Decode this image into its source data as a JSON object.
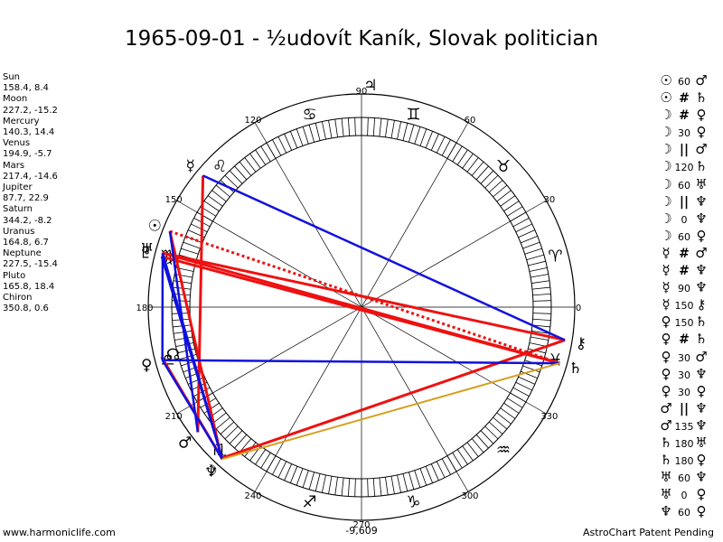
{
  "title": "1965-09-01 - ½udovít Kaník, Slovak politician",
  "footer": {
    "site": "www.harmoniclife.com",
    "patent": "AstroChart Patent Pending"
  },
  "planets": [
    {
      "name": "Sun",
      "lon": 158.4,
      "lat": 8.4,
      "coords": "158.4, 8.4",
      "glyph": "☉"
    },
    {
      "name": "Moon",
      "lon": 227.2,
      "lat": -15.2,
      "coords": "227.2, -15.2",
      "glyph": "☽"
    },
    {
      "name": "Mercury",
      "lon": 140.3,
      "lat": 14.4,
      "coords": "140.3, 14.4",
      "glyph": "☿"
    },
    {
      "name": "Venus",
      "lon": 194.9,
      "lat": -5.7,
      "coords": "194.9, -5.7",
      "glyph": "♀"
    },
    {
      "name": "Mars",
      "lon": 217.4,
      "lat": -14.6,
      "coords": "217.4, -14.6",
      "glyph": "♂"
    },
    {
      "name": "Jupiter",
      "lon": 87.7,
      "lat": 22.9,
      "coords": "87.7, 22.9",
      "glyph": "♃"
    },
    {
      "name": "Saturn",
      "lon": 344.2,
      "lat": -8.2,
      "coords": "344.2, -8.2",
      "glyph": "♄"
    },
    {
      "name": "Uranus",
      "lon": 164.8,
      "lat": 6.7,
      "coords": "164.8, 6.7",
      "glyph": "♅"
    },
    {
      "name": "Neptune",
      "lon": 227.5,
      "lat": -15.4,
      "coords": "227.5, -15.4",
      "glyph": "♆"
    },
    {
      "name": "Pluto",
      "lon": 165.8,
      "lat": 18.4,
      "coords": "165.8, 18.4",
      "glyph": "♇"
    },
    {
      "name": "Chiron",
      "lon": 350.8,
      "lat": 0.6,
      "coords": "350.8, 0.6",
      "glyph": "⚷"
    }
  ],
  "node": {
    "glyph": "☊",
    "lon": 194.0
  },
  "signs": [
    {
      "glyph": "♈",
      "lon": 15
    },
    {
      "glyph": "♉",
      "lon": 45
    },
    {
      "glyph": "♊",
      "lon": 75
    },
    {
      "glyph": "♋",
      "lon": 105
    },
    {
      "glyph": "♌",
      "lon": 135
    },
    {
      "glyph": "♍",
      "lon": 165
    },
    {
      "glyph": "♎",
      "lon": 195
    },
    {
      "glyph": "♏",
      "lon": 225
    },
    {
      "glyph": "♐",
      "lon": 255
    },
    {
      "glyph": "♑",
      "lon": 285
    },
    {
      "glyph": "♒",
      "lon": 315
    },
    {
      "glyph": "♓",
      "lon": 345
    }
  ],
  "degree_labels": [
    "0",
    "30",
    "60",
    "90",
    "120",
    "150",
    "180",
    "210",
    "240",
    "270",
    "300",
    "330"
  ],
  "bottom_value": "-9,609",
  "aspects": [
    {
      "p1": "☉",
      "type": "60",
      "p2": "♂"
    },
    {
      "p1": "☉",
      "type": "#",
      "p2": "♄"
    },
    {
      "p1": "☽",
      "type": "#",
      "p2": "♀"
    },
    {
      "p1": "☽",
      "type": "30",
      "p2": "♀"
    },
    {
      "p1": "☽",
      "type": "||",
      "p2": "♂"
    },
    {
      "p1": "☽",
      "type": "120",
      "p2": "♄"
    },
    {
      "p1": "☽",
      "type": "60",
      "p2": "♅"
    },
    {
      "p1": "☽",
      "type": "||",
      "p2": "♆"
    },
    {
      "p1": "☽",
      "type": "0",
      "p2": "♆"
    },
    {
      "p1": "☽",
      "type": "60",
      "p2": "♀"
    },
    {
      "p1": "☿",
      "type": "#",
      "p2": "♂"
    },
    {
      "p1": "☿",
      "type": "#",
      "p2": "♆"
    },
    {
      "p1": "☿",
      "type": "90",
      "p2": "♆"
    },
    {
      "p1": "☿",
      "type": "150",
      "p2": "⚷"
    },
    {
      "p1": "♀",
      "type": "150",
      "p2": "♄"
    },
    {
      "p1": "♀",
      "type": "#",
      "p2": "♄"
    },
    {
      "p1": "♀",
      "type": "30",
      "p2": "♂"
    },
    {
      "p1": "♀",
      "type": "30",
      "p2": "♆"
    },
    {
      "p1": "♀",
      "type": "30",
      "p2": "♀"
    },
    {
      "p1": "♂",
      "type": "||",
      "p2": "♆"
    },
    {
      "p1": "♂",
      "type": "135",
      "p2": "♆"
    },
    {
      "p1": "♄",
      "type": "180",
      "p2": "♅"
    },
    {
      "p1": "♄",
      "type": "180",
      "p2": "♀"
    },
    {
      "p1": "♅",
      "type": "60",
      "p2": "♆"
    },
    {
      "p1": "♅",
      "type": "0",
      "p2": "♀"
    },
    {
      "p1": "♆",
      "type": "60",
      "p2": "♀"
    }
  ],
  "colors": {
    "red": "#ee1111",
    "blue": "#1111dd",
    "gold": "#d4a020",
    "ring": "#000000"
  },
  "chart_data": {
    "type": "radial",
    "title": "1965-09-01 - ½udovít Kaník, Slovak politician",
    "lines": [
      {
        "from": "Mercury",
        "to": "Mars",
        "color": "red",
        "style": "solid"
      },
      {
        "from": "Sun",
        "to": "Saturn",
        "color": "red",
        "style": "dashed"
      },
      {
        "from": "Uranus",
        "to": "Saturn",
        "color": "red",
        "style": "solid"
      },
      {
        "from": "Pluto",
        "to": "Saturn",
        "color": "red",
        "style": "solid"
      },
      {
        "from": "Uranus",
        "to": "Chiron",
        "color": "red",
        "style": "solid"
      },
      {
        "from": "Moon",
        "to": "Chiron",
        "color": "red",
        "style": "solid"
      },
      {
        "from": "Sun",
        "to": "Moon",
        "color": "red",
        "style": "solid"
      },
      {
        "from": "Node",
        "to": "Neptune",
        "color": "red",
        "style": "solid"
      },
      {
        "from": "Mercury",
        "to": "Chiron",
        "color": "blue",
        "style": "solid"
      },
      {
        "from": "Venus",
        "to": "Saturn",
        "color": "blue",
        "style": "solid"
      },
      {
        "from": "Uranus",
        "to": "Neptune",
        "color": "blue",
        "style": "solid"
      },
      {
        "from": "Pluto",
        "to": "Neptune",
        "color": "blue",
        "style": "solid"
      },
      {
        "from": "Sun",
        "to": "Mars",
        "color": "blue",
        "style": "solid"
      },
      {
        "from": "Venus",
        "to": "Neptune",
        "color": "blue",
        "style": "solid"
      },
      {
        "from": "Venus",
        "to": "Uranus",
        "color": "blue",
        "style": "solid"
      },
      {
        "from": "Neptune",
        "to": "Saturn",
        "color": "gold",
        "style": "solid"
      }
    ]
  }
}
